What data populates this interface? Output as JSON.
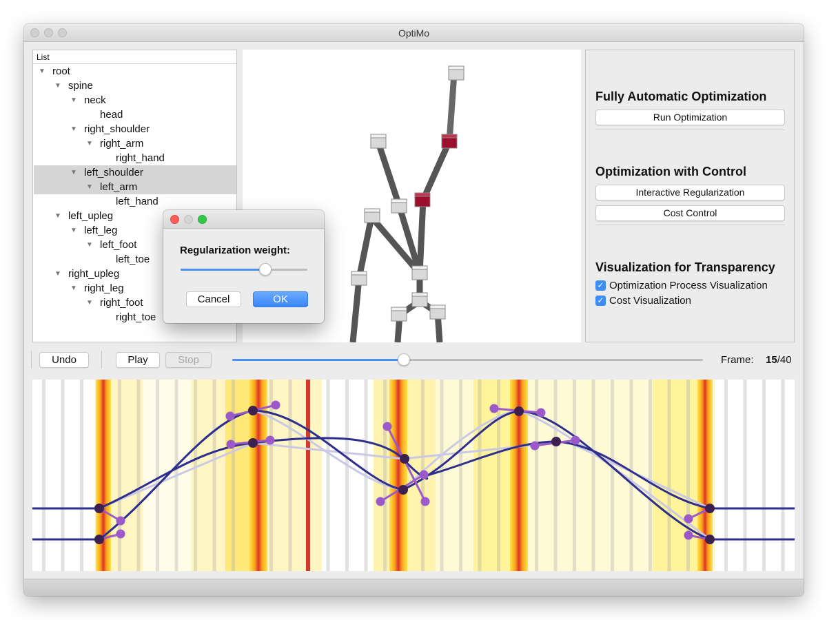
{
  "window": {
    "title": "OptiMo"
  },
  "tree": {
    "header": "List",
    "items": [
      {
        "label": "root",
        "depth": 0,
        "expanded": true,
        "selected": false
      },
      {
        "label": "spine",
        "depth": 1,
        "expanded": true,
        "selected": false
      },
      {
        "label": "neck",
        "depth": 2,
        "expanded": true,
        "selected": false
      },
      {
        "label": "head",
        "depth": 3,
        "expanded": false,
        "selected": false
      },
      {
        "label": "right_shoulder",
        "depth": 2,
        "expanded": true,
        "selected": false
      },
      {
        "label": "right_arm",
        "depth": 3,
        "expanded": true,
        "selected": false
      },
      {
        "label": "right_hand",
        "depth": 4,
        "expanded": false,
        "selected": false
      },
      {
        "label": "left_shoulder",
        "depth": 2,
        "expanded": true,
        "selected": true
      },
      {
        "label": "left_arm",
        "depth": 3,
        "expanded": true,
        "selected": true
      },
      {
        "label": "left_hand",
        "depth": 4,
        "expanded": false,
        "selected": false
      },
      {
        "label": "left_upleg",
        "depth": 1,
        "expanded": true,
        "selected": false
      },
      {
        "label": "left_leg",
        "depth": 2,
        "expanded": true,
        "selected": false
      },
      {
        "label": "left_foot",
        "depth": 3,
        "expanded": true,
        "selected": false
      },
      {
        "label": "left_toe",
        "depth": 4,
        "expanded": false,
        "selected": false
      },
      {
        "label": "right_upleg",
        "depth": 1,
        "expanded": true,
        "selected": false
      },
      {
        "label": "right_leg",
        "depth": 2,
        "expanded": true,
        "selected": false
      },
      {
        "label": "right_foot",
        "depth": 3,
        "expanded": true,
        "selected": false
      },
      {
        "label": "right_toe",
        "depth": 4,
        "expanded": false,
        "selected": false
      }
    ]
  },
  "panel": {
    "section1_title": "Fully Automatic Optimization",
    "run_button": "Run Optimization",
    "section2_title": "Optimization with Control",
    "interactive_button": "Interactive Regularization",
    "cost_button": "Cost Control",
    "section3_title": "Visualization for Transparency",
    "checkbox1": {
      "label": "Optimization Process Visualization",
      "checked": true
    },
    "checkbox2": {
      "label": "Cost Visualization",
      "checked": true
    }
  },
  "controls": {
    "undo_label": "Undo",
    "play_label": "Play",
    "stop_label": "Stop",
    "stop_disabled": true,
    "frame_label": "Frame:",
    "frame_current": "15",
    "frame_total": "/40",
    "frame_slider_fraction": 0.365
  },
  "dialog": {
    "label": "Regularization weight:",
    "slider_fraction": 0.67,
    "cancel_label": "Cancel",
    "ok_label": "OK"
  },
  "colors": {
    "accent": "#3b8cf5",
    "curve": "#2e2e8c",
    "curve_faint": "#c9c9e6",
    "handle": "#9b59c9",
    "keyframe": "#3c2050",
    "selected_joint": "#9e0e2f",
    "heat_peak": "#e0312a"
  }
}
